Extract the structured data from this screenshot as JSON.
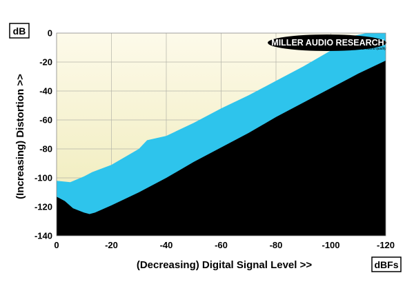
{
  "chart_data": {
    "type": "area",
    "title": "",
    "xlabel": "(Decreasing) Digital Signal Level >>",
    "ylabel": "(Increasing) Distortion >>",
    "x_unit": "dBFs",
    "y_unit": "dB",
    "xlim": [
      0,
      -120
    ],
    "ylim": [
      -140,
      0
    ],
    "x_ticks": [
      0,
      -20,
      -40,
      -60,
      -80,
      -100,
      -120
    ],
    "x_tick_labels": [
      "0",
      "-20",
      "-40",
      "-60",
      "-80",
      "-100",
      "-120"
    ],
    "y_ticks": [
      0,
      -20,
      -40,
      -60,
      -80,
      -100,
      -120,
      -140
    ],
    "y_tick_labels": [
      "0",
      "-20",
      "-40",
      "-60",
      "-80",
      "-100",
      "-120",
      "-140"
    ],
    "grid": true,
    "legend": "none",
    "colors": {
      "background_top": "#fdfaea",
      "background_bottom": "#eeeab4",
      "band": "#2ec4ec",
      "floor": "#000000",
      "grid": "#b3b3a8"
    },
    "series": [
      {
        "x": [
          0,
          -5,
          -10,
          -13,
          -20,
          -30,
          -33,
          -40,
          -50,
          -60,
          -70,
          -80,
          -90,
          -100,
          -108,
          -113
        ],
        "values": [
          -102,
          -103,
          -99,
          -96,
          -91,
          -80,
          -74,
          -71,
          -62,
          -52,
          -43,
          -33,
          -23,
          -12,
          -2,
          0
        ]
      },
      {
        "x": [
          0,
          -3,
          -6,
          -10,
          -12,
          -14,
          -20,
          -30,
          -40,
          -50,
          -60,
          -70,
          -80,
          -90,
          -100,
          -110,
          -120
        ],
        "values": [
          -113,
          -116,
          -121,
          -124,
          -125,
          -124,
          -119,
          -110,
          -100,
          -89,
          -79,
          -69,
          -58,
          -48,
          -38,
          -28,
          -19
        ]
      }
    ],
    "branding": {
      "name": "MILLER AUDIO RESEARCH",
      "tagline": "Setting the measure of sound quality"
    }
  }
}
